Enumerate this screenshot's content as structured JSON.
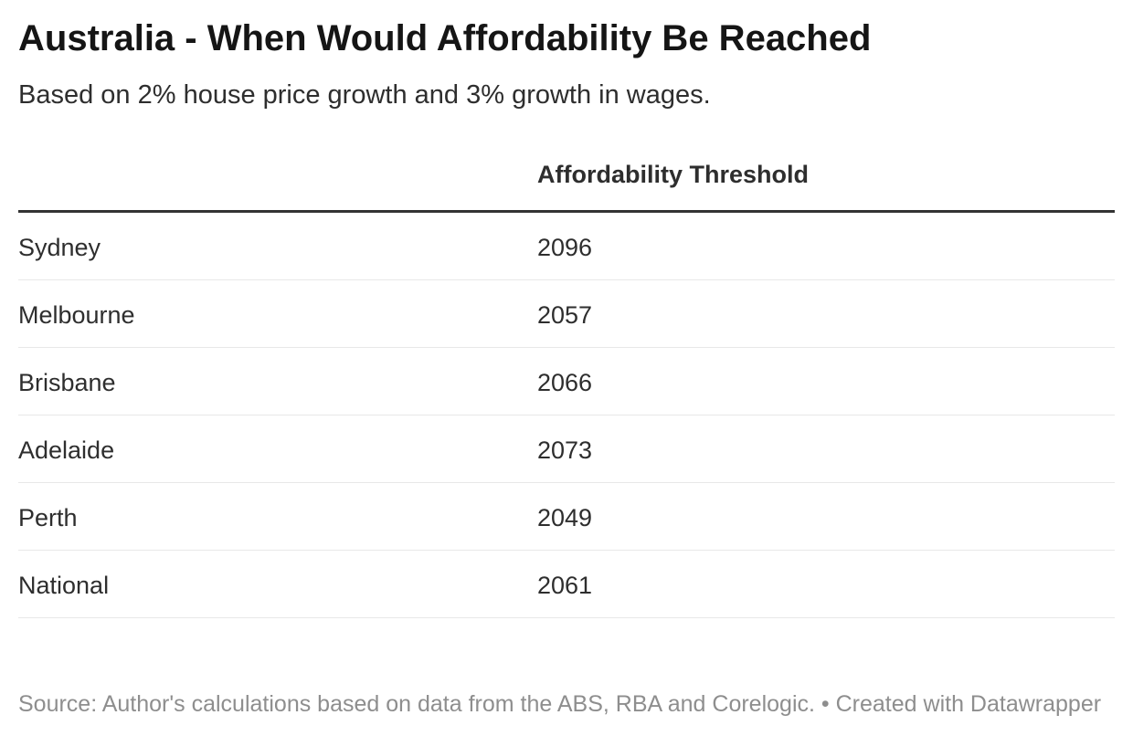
{
  "header": {
    "title": "Australia - When Would Affordability Be Reached",
    "subtitle": "Based on 2% house price growth and 3% growth in wages."
  },
  "chart_data": {
    "type": "table",
    "title": "Australia - When Would Affordability Be Reached",
    "subtitle": "Based on 2% house price growth and 3% growth in wages.",
    "columns": [
      "",
      "Affordability Threshold"
    ],
    "rows": [
      [
        "Sydney",
        2096
      ],
      [
        "Melbourne",
        2057
      ],
      [
        "Brisbane",
        2066
      ],
      [
        "Adelaide",
        2073
      ],
      [
        "Perth",
        2049
      ],
      [
        "National",
        2061
      ]
    ],
    "notes": "Source: Author's calculations based on data from the ABS, RBA and Corelogic.",
    "layout_hints": {
      "value_alignment": "left",
      "header_rule": "thick",
      "row_dividers": true
    }
  },
  "table": {
    "header": {
      "label_column": "",
      "value_column": "Affordability Threshold"
    },
    "rows": [
      {
        "label": "Sydney",
        "value": "2096"
      },
      {
        "label": "Melbourne",
        "value": "2057"
      },
      {
        "label": "Brisbane",
        "value": "2066"
      },
      {
        "label": "Adelaide",
        "value": "2073"
      },
      {
        "label": "Perth",
        "value": "2049"
      },
      {
        "label": "National",
        "value": "2061"
      }
    ]
  },
  "footer": {
    "source": "Source: Author's calculations based on data from the ABS, RBA and Corelogic.",
    "separator": "•",
    "attribution": "Created with Datawrapper"
  },
  "colors": {
    "background": "#ffffff",
    "title_text": "#151515",
    "body_text": "#2e2e2e",
    "header_rule": "#333333",
    "row_divider": "#e8e8e8",
    "footer_text": "#8e8e8e"
  }
}
